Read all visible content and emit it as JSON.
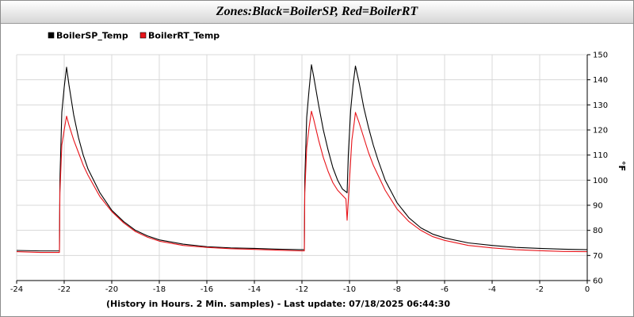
{
  "title": "Zones:Black=BoilerSP, Red=BoilerRT",
  "chart_data": {
    "type": "line",
    "title": "Zones:Black=BoilerSP, Red=BoilerRT",
    "xlabel": "(History in Hours. 2 Min. samples) - Last update: 07/18/2025 06:44:30",
    "ylabel": "°F",
    "xlim": [
      -24,
      0
    ],
    "ylim": [
      60,
      150
    ],
    "x_ticks": [
      -24,
      -22,
      -20,
      -18,
      -16,
      -14,
      -12,
      -10,
      -8,
      -6,
      -4,
      -2,
      0
    ],
    "y_ticks": [
      60,
      70,
      80,
      90,
      100,
      110,
      120,
      130,
      140,
      150
    ],
    "grid": true,
    "legend_position": "top-left",
    "series": [
      {
        "name": "BoilerSP_Temp",
        "color": "#000000",
        "points": [
          [
            -24,
            72.0
          ],
          [
            -23,
            71.8
          ],
          [
            -22.2,
            71.8
          ],
          [
            -22.18,
            100
          ],
          [
            -22.1,
            127
          ],
          [
            -22.0,
            137
          ],
          [
            -21.9,
            145
          ],
          [
            -21.8,
            138
          ],
          [
            -21.6,
            126
          ],
          [
            -21.4,
            117
          ],
          [
            -21.2,
            110
          ],
          [
            -21.0,
            104.5
          ],
          [
            -20.5,
            95
          ],
          [
            -20.0,
            88
          ],
          [
            -19.5,
            83.5
          ],
          [
            -19.0,
            80
          ],
          [
            -18.5,
            77.8
          ],
          [
            -18.0,
            76.2
          ],
          [
            -17.0,
            74.5
          ],
          [
            -16.0,
            73.5
          ],
          [
            -15.0,
            73.0
          ],
          [
            -14.0,
            72.8
          ],
          [
            -13.0,
            72.5
          ],
          [
            -12.0,
            72.3
          ],
          [
            -11.9,
            72.3
          ],
          [
            -11.88,
            100
          ],
          [
            -11.8,
            125
          ],
          [
            -11.7,
            136
          ],
          [
            -11.6,
            146
          ],
          [
            -11.5,
            141
          ],
          [
            -11.3,
            130
          ],
          [
            -11.1,
            120
          ],
          [
            -10.9,
            112
          ],
          [
            -10.7,
            105
          ],
          [
            -10.5,
            100
          ],
          [
            -10.3,
            96.5
          ],
          [
            -10.1,
            95
          ],
          [
            -10.05,
            110
          ],
          [
            -9.95,
            128
          ],
          [
            -9.85,
            138
          ],
          [
            -9.75,
            145.5
          ],
          [
            -9.6,
            139
          ],
          [
            -9.4,
            129
          ],
          [
            -9.2,
            121
          ],
          [
            -9.0,
            114
          ],
          [
            -8.8,
            108
          ],
          [
            -8.5,
            100
          ],
          [
            -8.0,
            91
          ],
          [
            -7.5,
            85
          ],
          [
            -7.0,
            81
          ],
          [
            -6.5,
            78.5
          ],
          [
            -6.0,
            77
          ],
          [
            -5.0,
            75
          ],
          [
            -4.0,
            74
          ],
          [
            -3.0,
            73.2
          ],
          [
            -2.0,
            72.8
          ],
          [
            -1.0,
            72.5
          ],
          [
            0,
            72.3
          ]
        ]
      },
      {
        "name": "BoilerRT_Temp",
        "color": "#e8141a",
        "points": [
          [
            -24,
            71.5
          ],
          [
            -23,
            71.2
          ],
          [
            -22.2,
            71.2
          ],
          [
            -22.18,
            95
          ],
          [
            -22.1,
            114
          ],
          [
            -22.0,
            120
          ],
          [
            -21.9,
            125.5
          ],
          [
            -21.8,
            122
          ],
          [
            -21.6,
            116
          ],
          [
            -21.4,
            111
          ],
          [
            -21.2,
            106
          ],
          [
            -21.0,
            102
          ],
          [
            -20.5,
            93.5
          ],
          [
            -20.0,
            87.5
          ],
          [
            -19.5,
            83
          ],
          [
            -19.0,
            79.5
          ],
          [
            -18.5,
            77.3
          ],
          [
            -18.0,
            75.7
          ],
          [
            -17.0,
            74
          ],
          [
            -16.0,
            73.2
          ],
          [
            -15.0,
            72.7
          ],
          [
            -14.0,
            72.4
          ],
          [
            -13.0,
            72.1
          ],
          [
            -12.0,
            71.8
          ],
          [
            -11.9,
            71.8
          ],
          [
            -11.88,
            95
          ],
          [
            -11.8,
            113
          ],
          [
            -11.7,
            121
          ],
          [
            -11.6,
            127.5
          ],
          [
            -11.5,
            124
          ],
          [
            -11.3,
            116
          ],
          [
            -11.1,
            109
          ],
          [
            -10.9,
            103.5
          ],
          [
            -10.7,
            99
          ],
          [
            -10.5,
            96
          ],
          [
            -10.3,
            94
          ],
          [
            -10.15,
            92.5
          ],
          [
            -10.1,
            84
          ],
          [
            -10.0,
            100
          ],
          [
            -9.9,
            116
          ],
          [
            -9.8,
            123
          ],
          [
            -9.75,
            127
          ],
          [
            -9.6,
            123
          ],
          [
            -9.4,
            117
          ],
          [
            -9.2,
            111
          ],
          [
            -9.0,
            106
          ],
          [
            -8.8,
            102
          ],
          [
            -8.5,
            96
          ],
          [
            -8.0,
            88.5
          ],
          [
            -7.5,
            83.5
          ],
          [
            -7.0,
            80
          ],
          [
            -6.5,
            77.5
          ],
          [
            -6.0,
            76
          ],
          [
            -5.0,
            74
          ],
          [
            -4.0,
            73
          ],
          [
            -3.0,
            72.3
          ],
          [
            -2.0,
            71.9
          ],
          [
            -1.0,
            71.6
          ],
          [
            0,
            71.5
          ]
        ]
      }
    ]
  }
}
